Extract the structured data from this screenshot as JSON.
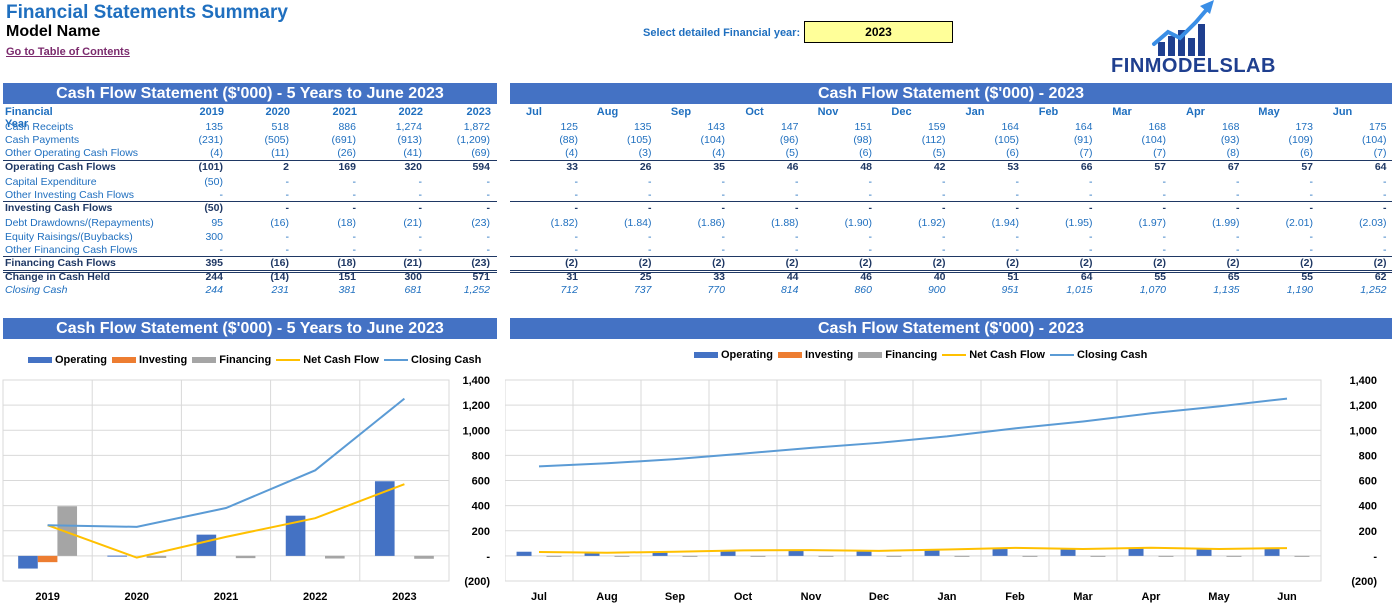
{
  "header": {
    "title": "Financial Statements Summary",
    "model_name": "Model Name",
    "toc_link": "Go to Table of Contents",
    "year_label": "Select detailed Financial year:",
    "year_value": "2023",
    "logo_text": "FINMODELSLAB"
  },
  "annual_table": {
    "title": "Cash Flow Statement ($'000) - 5 Years to June 2023",
    "year_header": "Financial Year",
    "columns": [
      "2019",
      "2020",
      "2021",
      "2022",
      "2023"
    ],
    "rows": [
      {
        "label": "Cash Receipts",
        "values": [
          "135",
          "518",
          "886",
          "1,274",
          "1,872"
        ],
        "style": ""
      },
      {
        "label": "Cash Payments",
        "values": [
          "(231)",
          "(505)",
          "(691)",
          "(913)",
          "(1,209)"
        ],
        "style": ""
      },
      {
        "label": "Other Operating Cash Flows",
        "values": [
          "(4)",
          "(11)",
          "(26)",
          "(41)",
          "(69)"
        ],
        "style": ""
      },
      {
        "label": "Operating Cash Flows",
        "values": [
          "(101)",
          "2",
          "169",
          "320",
          "594"
        ],
        "style": "bold"
      },
      {
        "label": "Capital Expenditure",
        "values": [
          "(50)",
          "-",
          "-",
          "-",
          "-"
        ],
        "style": ""
      },
      {
        "label": "Other Investing Cash Flows",
        "values": [
          "-",
          "-",
          "-",
          "-",
          "-"
        ],
        "style": ""
      },
      {
        "label": "Investing Cash Flows",
        "values": [
          "(50)",
          "-",
          "-",
          "-",
          "-"
        ],
        "style": "bold"
      },
      {
        "label": "Debt Drawdowns/(Repayments)",
        "values": [
          "95",
          "(16)",
          "(18)",
          "(21)",
          "(23)"
        ],
        "style": ""
      },
      {
        "label": "Equity Raisings/(Buybacks)",
        "values": [
          "300",
          "-",
          "-",
          "-",
          "-"
        ],
        "style": ""
      },
      {
        "label": "Other Financing Cash Flows",
        "values": [
          "-",
          "-",
          "-",
          "-",
          "-"
        ],
        "style": ""
      },
      {
        "label": "Financing Cash Flows",
        "values": [
          "395",
          "(16)",
          "(18)",
          "(21)",
          "(23)"
        ],
        "style": "bold"
      },
      {
        "label": "Change in Cash Held",
        "values": [
          "244",
          "(14)",
          "151",
          "300",
          "571"
        ],
        "style": "bold"
      },
      {
        "label": "Closing Cash",
        "values": [
          "244",
          "231",
          "381",
          "681",
          "1,252"
        ],
        "style": "italic"
      }
    ]
  },
  "monthly_table": {
    "title": "Cash Flow Statement ($'000) - 2023",
    "columns": [
      "Jul",
      "Aug",
      "Sep",
      "Oct",
      "Nov",
      "Dec",
      "Jan",
      "Feb",
      "Mar",
      "Apr",
      "May",
      "Jun"
    ],
    "rows": [
      [
        "125",
        "135",
        "143",
        "147",
        "151",
        "159",
        "164",
        "164",
        "168",
        "168",
        "173",
        "175"
      ],
      [
        "(88)",
        "(105)",
        "(104)",
        "(96)",
        "(98)",
        "(112)",
        "(105)",
        "(91)",
        "(104)",
        "(93)",
        "(109)",
        "(104)"
      ],
      [
        "(4)",
        "(3)",
        "(4)",
        "(5)",
        "(6)",
        "(5)",
        "(6)",
        "(7)",
        "(7)",
        "(8)",
        "(6)",
        "(7)"
      ],
      [
        "33",
        "26",
        "35",
        "46",
        "48",
        "42",
        "53",
        "66",
        "57",
        "67",
        "57",
        "64"
      ],
      [
        "-",
        "-",
        "-",
        "-",
        "-",
        "-",
        "-",
        "-",
        "-",
        "-",
        "-",
        "-"
      ],
      [
        "-",
        "-",
        "-",
        "-",
        "-",
        "-",
        "-",
        "-",
        "-",
        "-",
        "-",
        "-"
      ],
      [
        "-",
        "-",
        "-",
        "-",
        "-",
        "-",
        "-",
        "-",
        "-",
        "-",
        "-",
        "-"
      ],
      [
        "(1.82)",
        "(1.84)",
        "(1.86)",
        "(1.88)",
        "(1.90)",
        "(1.92)",
        "(1.94)",
        "(1.95)",
        "(1.97)",
        "(1.99)",
        "(2.01)",
        "(2.03)"
      ],
      [
        "-",
        "-",
        "-",
        "-",
        "-",
        "-",
        "-",
        "-",
        "-",
        "-",
        "-",
        "-"
      ],
      [
        "-",
        "-",
        "-",
        "-",
        "-",
        "-",
        "-",
        "-",
        "-",
        "-",
        "-",
        "-"
      ],
      [
        "(2)",
        "(2)",
        "(2)",
        "(2)",
        "(2)",
        "(2)",
        "(2)",
        "(2)",
        "(2)",
        "(2)",
        "(2)",
        "(2)"
      ],
      [
        "31",
        "25",
        "33",
        "44",
        "46",
        "40",
        "51",
        "64",
        "55",
        "65",
        "55",
        "62"
      ],
      [
        "712",
        "737",
        "770",
        "814",
        "860",
        "900",
        "951",
        "1,015",
        "1,070",
        "1,135",
        "1,190",
        "1,252"
      ]
    ]
  },
  "chart_data": [
    {
      "type": "bar",
      "title": "Cash Flow Statement ($'000) - 5 Years to June 2023",
      "categories": [
        "2019",
        "2020",
        "2021",
        "2022",
        "2023"
      ],
      "ylim": [
        -200,
        1400
      ],
      "yticks": [
        "(200)",
        "-",
        "200",
        "400",
        "600",
        "800",
        "1,000",
        "1,200",
        "1,400"
      ],
      "legend_position": "top",
      "series": [
        {
          "name": "Operating",
          "kind": "bar",
          "color": "#4472c4",
          "values": [
            -101,
            2,
            169,
            320,
            594
          ]
        },
        {
          "name": "Investing",
          "kind": "bar",
          "color": "#ed7d31",
          "values": [
            -50,
            0,
            0,
            0,
            0
          ]
        },
        {
          "name": "Financing",
          "kind": "bar",
          "color": "#a5a5a5",
          "values": [
            395,
            -16,
            -18,
            -21,
            -23
          ]
        },
        {
          "name": "Net Cash Flow",
          "kind": "line",
          "color": "#ffc000",
          "values": [
            244,
            -14,
            151,
            300,
            571
          ]
        },
        {
          "name": "Closing Cash",
          "kind": "line",
          "color": "#5b9bd5",
          "values": [
            244,
            231,
            381,
            681,
            1252
          ]
        }
      ]
    },
    {
      "type": "bar",
      "title": "Cash Flow Statement ($'000) - 2023",
      "categories": [
        "Jul",
        "Aug",
        "Sep",
        "Oct",
        "Nov",
        "Dec",
        "Jan",
        "Feb",
        "Mar",
        "Apr",
        "May",
        "Jun"
      ],
      "ylim": [
        -200,
        1400
      ],
      "yticks": [
        "(200)",
        "-",
        "200",
        "400",
        "600",
        "800",
        "1,000",
        "1,200",
        "1,400"
      ],
      "legend_position": "top",
      "series": [
        {
          "name": "Operating",
          "kind": "bar",
          "color": "#4472c4",
          "values": [
            33,
            26,
            35,
            46,
            48,
            42,
            53,
            66,
            57,
            67,
            57,
            64
          ]
        },
        {
          "name": "Investing",
          "kind": "bar",
          "color": "#ed7d31",
          "values": [
            0,
            0,
            0,
            0,
            0,
            0,
            0,
            0,
            0,
            0,
            0,
            0
          ]
        },
        {
          "name": "Financing",
          "kind": "bar",
          "color": "#a5a5a5",
          "values": [
            -2,
            -2,
            -2,
            -2,
            -2,
            -2,
            -2,
            -2,
            -2,
            -2,
            -2,
            -2
          ]
        },
        {
          "name": "Net Cash Flow",
          "kind": "line",
          "color": "#ffc000",
          "values": [
            31,
            25,
            33,
            44,
            46,
            40,
            51,
            64,
            55,
            65,
            55,
            62
          ]
        },
        {
          "name": "Closing Cash",
          "kind": "line",
          "color": "#5b9bd5",
          "values": [
            712,
            737,
            770,
            814,
            860,
            900,
            951,
            1015,
            1070,
            1135,
            1190,
            1252
          ]
        }
      ]
    }
  ]
}
